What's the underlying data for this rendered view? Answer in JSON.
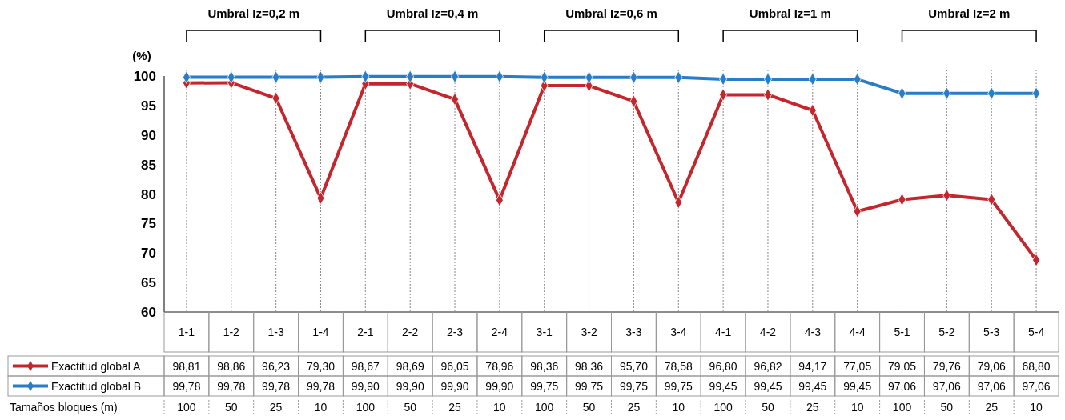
{
  "chart_data": {
    "type": "line",
    "ylabel": "(%)",
    "categories": [
      "1-1",
      "1-2",
      "1-3",
      "1-4",
      "2-1",
      "2-2",
      "2-3",
      "2-4",
      "3-1",
      "3-2",
      "3-3",
      "3-4",
      "4-1",
      "4-2",
      "4-3",
      "4-4",
      "5-1",
      "5-2",
      "5-3",
      "5-4"
    ],
    "series": [
      {
        "name": "Exactitud global A",
        "color": "#c4262e",
        "values": [
          98.81,
          98.86,
          96.23,
          79.3,
          98.67,
          98.69,
          96.05,
          78.96,
          98.36,
          98.36,
          95.7,
          78.58,
          96.8,
          96.82,
          94.17,
          77.05,
          79.05,
          79.76,
          79.06,
          68.8
        ],
        "value_labels": [
          "98,81",
          "98,86",
          "96,23",
          "79,30",
          "98,67",
          "98,69",
          "96,05",
          "78,96",
          "98,36",
          "98,36",
          "95,70",
          "78,58",
          "96,80",
          "96,82",
          "94,17",
          "77,05",
          "79,05",
          "79,76",
          "79,06",
          "68,80"
        ]
      },
      {
        "name": "Exactitud global B",
        "color": "#2b7cc6",
        "values": [
          99.78,
          99.78,
          99.78,
          99.78,
          99.9,
          99.9,
          99.9,
          99.9,
          99.75,
          99.75,
          99.75,
          99.75,
          99.45,
          99.45,
          99.45,
          99.45,
          97.06,
          97.06,
          97.06,
          97.06
        ],
        "value_labels": [
          "99,78",
          "99,78",
          "99,78",
          "99,78",
          "99,90",
          "99,90",
          "99,90",
          "99,90",
          "99,75",
          "99,75",
          "99,75",
          "99,75",
          "99,45",
          "99,45",
          "99,45",
          "99,45",
          "97,06",
          "97,06",
          "97,06",
          "97,06"
        ]
      }
    ],
    "ylim": [
      60,
      100
    ],
    "yticks": [
      60,
      65,
      70,
      75,
      80,
      85,
      90,
      95,
      100
    ],
    "grid": "x",
    "marker": "diamond",
    "line_style": "solid",
    "legend": "bottom left",
    "annotations": [
      "Umbral Iz=0,2 m",
      "Umbral Iz=0,4 m",
      "Umbral Iz=0,6 m",
      "Umbral Iz=1 m",
      "Umbral Iz=2 m",
      "Tamaños bloques (m)",
      "100",
      "50",
      "25",
      "10",
      "100",
      "50",
      "25",
      "10",
      "100",
      "50",
      "25",
      "10",
      "100",
      "50",
      "25",
      "10",
      "100",
      "50",
      "25",
      "10"
    ]
  }
}
